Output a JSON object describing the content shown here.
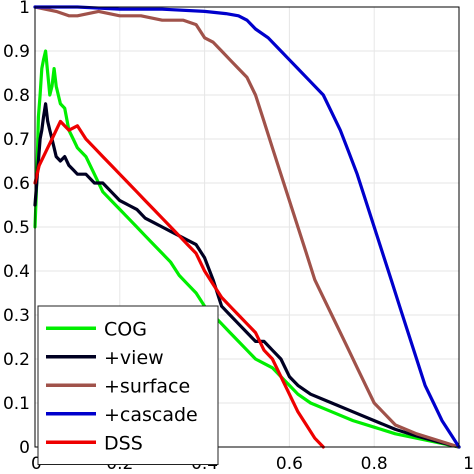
{
  "chart_data": {
    "type": "line",
    "title": "",
    "xlabel": "",
    "ylabel": "",
    "xlim": [
      0,
      1
    ],
    "ylim": [
      0,
      1
    ],
    "x_ticks": [
      "0",
      "0.2",
      "0.4",
      "0.6",
      "0.8",
      "1"
    ],
    "y_ticks": [
      "0",
      "0.1",
      "0.2",
      "0.3",
      "0.4",
      "0.5",
      "0.6",
      "0.7",
      "0.8",
      "0.9",
      "1"
    ],
    "grid": true,
    "legend_position": "bottom-left",
    "series": [
      {
        "name": "COG",
        "color": "#00ee00",
        "points": [
          [
            0.0,
            0.5
          ],
          [
            0.004,
            0.6
          ],
          [
            0.008,
            0.75
          ],
          [
            0.012,
            0.8
          ],
          [
            0.016,
            0.86
          ],
          [
            0.02,
            0.88
          ],
          [
            0.025,
            0.9
          ],
          [
            0.03,
            0.85
          ],
          [
            0.035,
            0.8
          ],
          [
            0.04,
            0.82
          ],
          [
            0.045,
            0.86
          ],
          [
            0.05,
            0.82
          ],
          [
            0.06,
            0.78
          ],
          [
            0.07,
            0.77
          ],
          [
            0.08,
            0.72
          ],
          [
            0.09,
            0.7
          ],
          [
            0.1,
            0.68
          ],
          [
            0.12,
            0.66
          ],
          [
            0.14,
            0.62
          ],
          [
            0.16,
            0.58
          ],
          [
            0.18,
            0.56
          ],
          [
            0.2,
            0.54
          ],
          [
            0.22,
            0.52
          ],
          [
            0.24,
            0.5
          ],
          [
            0.26,
            0.48
          ],
          [
            0.28,
            0.46
          ],
          [
            0.3,
            0.44
          ],
          [
            0.32,
            0.42
          ],
          [
            0.34,
            0.39
          ],
          [
            0.36,
            0.37
          ],
          [
            0.38,
            0.35
          ],
          [
            0.4,
            0.32
          ],
          [
            0.42,
            0.3
          ],
          [
            0.44,
            0.28
          ],
          [
            0.46,
            0.26
          ],
          [
            0.48,
            0.24
          ],
          [
            0.5,
            0.22
          ],
          [
            0.52,
            0.2
          ],
          [
            0.54,
            0.19
          ],
          [
            0.56,
            0.18
          ],
          [
            0.58,
            0.16
          ],
          [
            0.6,
            0.14
          ],
          [
            0.62,
            0.12
          ],
          [
            0.65,
            0.1
          ],
          [
            0.7,
            0.08
          ],
          [
            0.75,
            0.06
          ],
          [
            0.8,
            0.045
          ],
          [
            0.85,
            0.03
          ],
          [
            0.9,
            0.02
          ],
          [
            0.95,
            0.01
          ],
          [
            1.0,
            0.0
          ]
        ]
      },
      {
        "name": "+view",
        "color": "#000022",
        "points": [
          [
            0.0,
            0.55
          ],
          [
            0.004,
            0.6
          ],
          [
            0.008,
            0.65
          ],
          [
            0.012,
            0.7
          ],
          [
            0.016,
            0.72
          ],
          [
            0.02,
            0.75
          ],
          [
            0.025,
            0.78
          ],
          [
            0.03,
            0.74
          ],
          [
            0.035,
            0.72
          ],
          [
            0.04,
            0.7
          ],
          [
            0.045,
            0.68
          ],
          [
            0.05,
            0.66
          ],
          [
            0.06,
            0.65
          ],
          [
            0.07,
            0.66
          ],
          [
            0.08,
            0.64
          ],
          [
            0.09,
            0.63
          ],
          [
            0.1,
            0.62
          ],
          [
            0.12,
            0.62
          ],
          [
            0.14,
            0.6
          ],
          [
            0.16,
            0.6
          ],
          [
            0.18,
            0.58
          ],
          [
            0.2,
            0.56
          ],
          [
            0.22,
            0.55
          ],
          [
            0.24,
            0.54
          ],
          [
            0.26,
            0.52
          ],
          [
            0.28,
            0.51
          ],
          [
            0.3,
            0.5
          ],
          [
            0.32,
            0.49
          ],
          [
            0.34,
            0.48
          ],
          [
            0.36,
            0.47
          ],
          [
            0.38,
            0.46
          ],
          [
            0.4,
            0.43
          ],
          [
            0.42,
            0.38
          ],
          [
            0.44,
            0.32
          ],
          [
            0.46,
            0.3
          ],
          [
            0.48,
            0.28
          ],
          [
            0.5,
            0.26
          ],
          [
            0.52,
            0.24
          ],
          [
            0.54,
            0.24
          ],
          [
            0.56,
            0.22
          ],
          [
            0.58,
            0.2
          ],
          [
            0.6,
            0.16
          ],
          [
            0.62,
            0.14
          ],
          [
            0.65,
            0.12
          ],
          [
            0.7,
            0.1
          ],
          [
            0.75,
            0.08
          ],
          [
            0.8,
            0.06
          ],
          [
            0.85,
            0.04
          ],
          [
            0.9,
            0.025
          ],
          [
            0.95,
            0.012
          ],
          [
            1.0,
            0.0
          ]
        ]
      },
      {
        "name": "+surface",
        "color": "#a0524a",
        "points": [
          [
            0.0,
            1.0
          ],
          [
            0.05,
            0.99
          ],
          [
            0.08,
            0.98
          ],
          [
            0.1,
            0.98
          ],
          [
            0.15,
            0.99
          ],
          [
            0.2,
            0.98
          ],
          [
            0.25,
            0.98
          ],
          [
            0.3,
            0.97
          ],
          [
            0.35,
            0.97
          ],
          [
            0.38,
            0.96
          ],
          [
            0.4,
            0.93
          ],
          [
            0.42,
            0.92
          ],
          [
            0.44,
            0.9
          ],
          [
            0.46,
            0.88
          ],
          [
            0.48,
            0.86
          ],
          [
            0.5,
            0.84
          ],
          [
            0.52,
            0.8
          ],
          [
            0.54,
            0.74
          ],
          [
            0.56,
            0.68
          ],
          [
            0.58,
            0.62
          ],
          [
            0.6,
            0.56
          ],
          [
            0.62,
            0.5
          ],
          [
            0.64,
            0.44
          ],
          [
            0.66,
            0.38
          ],
          [
            0.68,
            0.34
          ],
          [
            0.7,
            0.3
          ],
          [
            0.72,
            0.26
          ],
          [
            0.74,
            0.22
          ],
          [
            0.76,
            0.18
          ],
          [
            0.78,
            0.14
          ],
          [
            0.8,
            0.1
          ],
          [
            0.82,
            0.08
          ],
          [
            0.85,
            0.05
          ],
          [
            0.9,
            0.03
          ],
          [
            0.95,
            0.015
          ],
          [
            1.0,
            0.0
          ]
        ]
      },
      {
        "name": "+cascade",
        "color": "#0000cc",
        "points": [
          [
            0.0,
            1.0
          ],
          [
            0.1,
            1.0
          ],
          [
            0.2,
            0.995
          ],
          [
            0.3,
            0.995
          ],
          [
            0.4,
            0.99
          ],
          [
            0.45,
            0.985
          ],
          [
            0.48,
            0.98
          ],
          [
            0.5,
            0.97
          ],
          [
            0.52,
            0.95
          ],
          [
            0.55,
            0.93
          ],
          [
            0.58,
            0.9
          ],
          [
            0.6,
            0.88
          ],
          [
            0.62,
            0.86
          ],
          [
            0.65,
            0.83
          ],
          [
            0.68,
            0.8
          ],
          [
            0.7,
            0.76
          ],
          [
            0.72,
            0.72
          ],
          [
            0.74,
            0.67
          ],
          [
            0.76,
            0.62
          ],
          [
            0.78,
            0.56
          ],
          [
            0.8,
            0.5
          ],
          [
            0.82,
            0.44
          ],
          [
            0.84,
            0.38
          ],
          [
            0.86,
            0.32
          ],
          [
            0.88,
            0.26
          ],
          [
            0.9,
            0.2
          ],
          [
            0.92,
            0.14
          ],
          [
            0.94,
            0.1
          ],
          [
            0.96,
            0.06
          ],
          [
            0.98,
            0.03
          ],
          [
            1.0,
            0.0
          ]
        ]
      },
      {
        "name": "DSS",
        "color": "#ee0000",
        "points": [
          [
            0.0,
            0.6
          ],
          [
            0.01,
            0.64
          ],
          [
            0.02,
            0.66
          ],
          [
            0.03,
            0.68
          ],
          [
            0.04,
            0.7
          ],
          [
            0.05,
            0.72
          ],
          [
            0.06,
            0.74
          ],
          [
            0.08,
            0.72
          ],
          [
            0.1,
            0.73
          ],
          [
            0.12,
            0.7
          ],
          [
            0.14,
            0.68
          ],
          [
            0.16,
            0.66
          ],
          [
            0.18,
            0.64
          ],
          [
            0.2,
            0.62
          ],
          [
            0.22,
            0.6
          ],
          [
            0.24,
            0.58
          ],
          [
            0.26,
            0.56
          ],
          [
            0.28,
            0.54
          ],
          [
            0.3,
            0.52
          ],
          [
            0.32,
            0.5
          ],
          [
            0.34,
            0.48
          ],
          [
            0.36,
            0.46
          ],
          [
            0.38,
            0.44
          ],
          [
            0.4,
            0.4
          ],
          [
            0.42,
            0.37
          ],
          [
            0.44,
            0.34
          ],
          [
            0.46,
            0.32
          ],
          [
            0.48,
            0.3
          ],
          [
            0.5,
            0.28
          ],
          [
            0.52,
            0.26
          ],
          [
            0.54,
            0.22
          ],
          [
            0.56,
            0.2
          ],
          [
            0.58,
            0.16
          ],
          [
            0.6,
            0.12
          ],
          [
            0.62,
            0.08
          ],
          [
            0.64,
            0.05
          ],
          [
            0.66,
            0.02
          ],
          [
            0.68,
            0.0
          ]
        ]
      }
    ]
  }
}
